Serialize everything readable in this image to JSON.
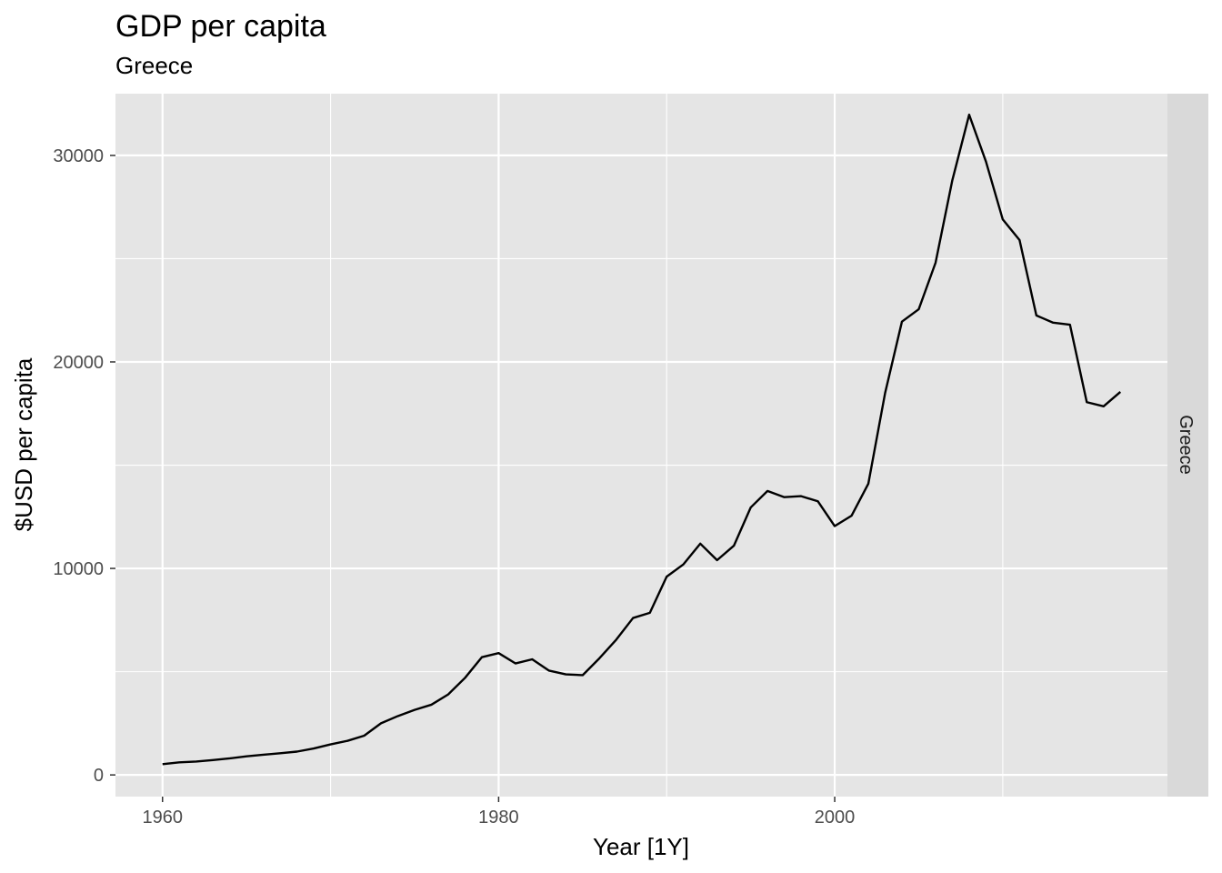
{
  "chart_data": {
    "type": "line",
    "title": "GDP per capita",
    "subtitle": "Greece",
    "xlabel": "Year [1Y]",
    "ylabel": "$USD per capita",
    "facet_label": "Greece",
    "xlim": [
      1957.2,
      2019.8
    ],
    "ylim": [
      -1050,
      32990
    ],
    "x_ticks": [
      1960,
      1980,
      2000
    ],
    "x_tick_labels": [
      "1960",
      "1980",
      "2000"
    ],
    "x_minor_ticks": [
      1970,
      1990,
      2010
    ],
    "y_ticks": [
      0,
      10000,
      20000,
      30000
    ],
    "y_tick_labels": [
      "0",
      "10000",
      "20000",
      "30000"
    ],
    "y_minor_ticks": [
      5000,
      15000,
      25000
    ],
    "grid": true,
    "colors": {
      "panel": "#e5e5e5",
      "grid": "#ffffff",
      "strip": "#d9d9d9",
      "line": "#000000"
    },
    "series": [
      {
        "x": [
          1960,
          1961,
          1962,
          1963,
          1964,
          1965,
          1966,
          1967,
          1968,
          1969,
          1970,
          1971,
          1972,
          1973,
          1974,
          1975,
          1976,
          1977,
          1978,
          1979,
          1980,
          1981,
          1982,
          1983,
          1984,
          1985,
          1986,
          1987,
          1988,
          1989,
          1990,
          1991,
          1992,
          1993,
          1994,
          1995,
          1996,
          1997,
          1998,
          1999,
          2000,
          2001,
          2002,
          2003,
          2004,
          2005,
          2006,
          2007,
          2008,
          2009,
          2010,
          2011,
          2012,
          2013,
          2014,
          2015,
          2016,
          2017
        ],
        "values": [
          520,
          610,
          650,
          720,
          800,
          900,
          980,
          1050,
          1130,
          1280,
          1480,
          1650,
          1900,
          2500,
          2850,
          3150,
          3400,
          3900,
          4700,
          5700,
          5900,
          5400,
          5600,
          5050,
          4870,
          4830,
          5650,
          6550,
          7600,
          7850,
          9600,
          10200,
          11200,
          10400,
          11100,
          12950,
          13750,
          13450,
          13500,
          13250,
          12050,
          12550,
          14100,
          18500,
          21950,
          22550,
          24800,
          28800,
          31970,
          29700,
          26900,
          25900,
          22250,
          21900,
          21800,
          18050,
          17850,
          18550
        ]
      }
    ]
  }
}
